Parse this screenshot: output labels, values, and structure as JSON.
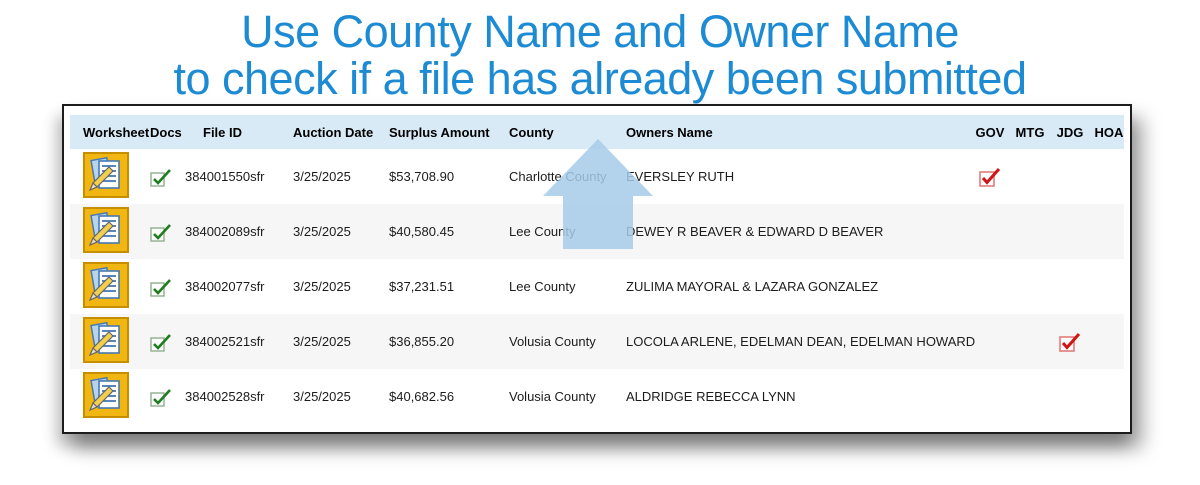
{
  "title": {
    "line1": "Use County Name and Owner Name",
    "line2": "to check if a file has already been submitted"
  },
  "table": {
    "columns": [
      {
        "key": "worksheet",
        "label": "Worksheet"
      },
      {
        "key": "docs",
        "label": "Docs"
      },
      {
        "key": "file_id",
        "label": "File ID"
      },
      {
        "key": "auction_date",
        "label": "Auction Date"
      },
      {
        "key": "surplus_amount",
        "label": "Surplus Amount"
      },
      {
        "key": "county",
        "label": "County"
      },
      {
        "key": "owners_name",
        "label": "Owners Name"
      },
      {
        "key": "gov",
        "label": "GOV"
      },
      {
        "key": "mtg",
        "label": "MTG"
      },
      {
        "key": "jdg",
        "label": "JDG"
      },
      {
        "key": "hoa",
        "label": "HOA"
      }
    ],
    "rows": [
      {
        "worksheet": true,
        "docs": true,
        "file_id": "384001550sfr",
        "auction_date": "3/25/2025",
        "surplus_amount": "$53,708.90",
        "county": "Charlotte County",
        "owners_name": "EVERSLEY RUTH",
        "gov": true,
        "mtg": false,
        "jdg": false,
        "hoa": false
      },
      {
        "worksheet": true,
        "docs": true,
        "file_id": "384002089sfr",
        "auction_date": "3/25/2025",
        "surplus_amount": "$40,580.45",
        "county": "Lee County",
        "owners_name": "DEWEY R BEAVER & EDWARD D BEAVER",
        "gov": false,
        "mtg": false,
        "jdg": false,
        "hoa": false
      },
      {
        "worksheet": true,
        "docs": true,
        "file_id": "384002077sfr",
        "auction_date": "3/25/2025",
        "surplus_amount": "$37,231.51",
        "county": "Lee County",
        "owners_name": "ZULIMA MAYORAL & LAZARA GONZALEZ",
        "gov": false,
        "mtg": false,
        "jdg": false,
        "hoa": false
      },
      {
        "worksheet": true,
        "docs": true,
        "file_id": "384002521sfr",
        "auction_date": "3/25/2025",
        "surplus_amount": "$36,855.20",
        "county": "Volusia County",
        "owners_name": "LOCOLA ARLENE, EDELMAN DEAN, EDELMAN HOWARD",
        "gov": false,
        "mtg": false,
        "jdg": true,
        "hoa": false
      },
      {
        "worksheet": true,
        "docs": true,
        "file_id": "384002528sfr",
        "auction_date": "3/25/2025",
        "surplus_amount": "$40,682.56",
        "county": "Volusia County",
        "owners_name": "ALDRIDGE REBECCA LYNN",
        "gov": false,
        "mtg": false,
        "jdg": false,
        "hoa": false
      }
    ]
  },
  "icons": {
    "worksheet": "worksheet-notepad-pencil-icon",
    "docs": "green-check-checkbox-icon",
    "flag": "red-check-checkbox-icon",
    "arrow": "up-arrow-highlight"
  },
  "colors": {
    "title_blue": "#1d8bd4",
    "header_bg": "#d9eaf7",
    "row_alt_bg": "#f6f6f6",
    "arrow_blue": "#a6cbe9",
    "green_check": "#1e7d1e",
    "green_box_border": "#8fae8f",
    "red_check": "#cf1515",
    "red_box_border": "#e37b7b",
    "worksheet_gold": "#f2b613",
    "worksheet_border": "#c68f00",
    "page_blue": "#4579b2"
  }
}
